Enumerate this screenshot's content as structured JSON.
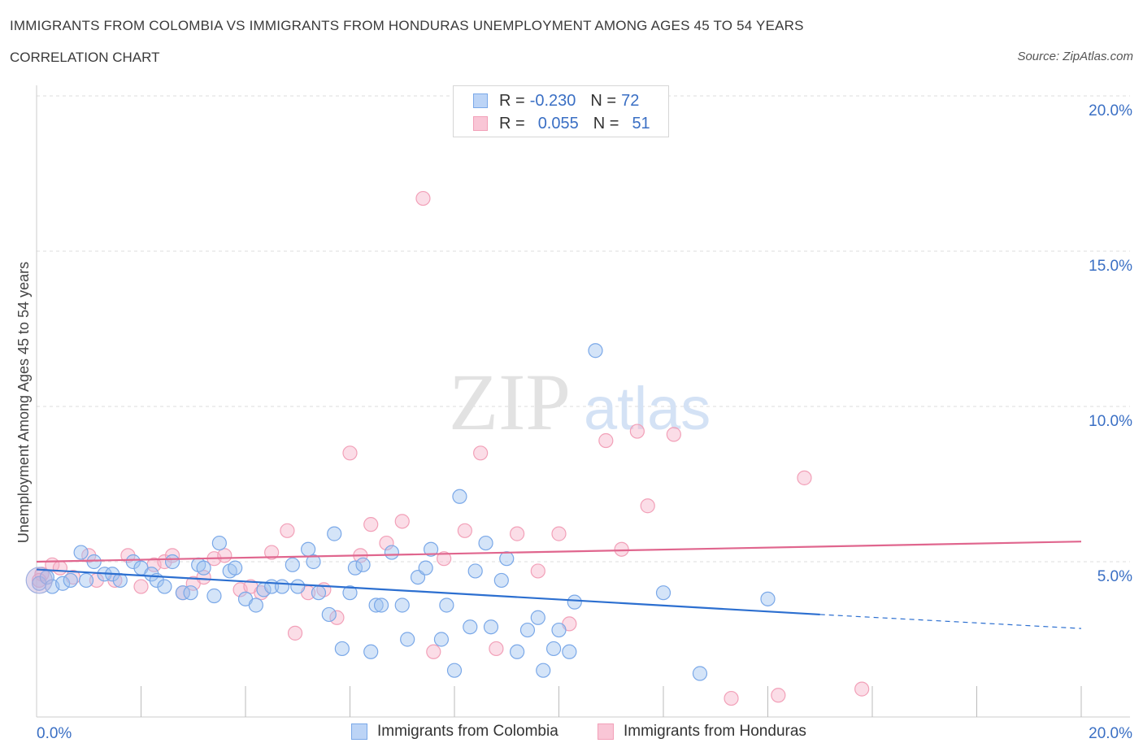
{
  "title": "IMMIGRANTS FROM COLOMBIA VS IMMIGRANTS FROM HONDURAS UNEMPLOYMENT AMONG AGES 45 TO 54 YEARS",
  "subtitle": "CORRELATION CHART",
  "source": "Source: ZipAtlas.com",
  "watermark": {
    "zip": "ZIP",
    "atlas": "atlas"
  },
  "legend_stats": [
    {
      "r_label": "R =",
      "r_value": "-0.230",
      "n_label": "N =",
      "n_value": "72"
    },
    {
      "r_label": "R =",
      "r_value": "0.055",
      "n_label": "N =",
      "n_value": "51"
    }
  ],
  "chart_data": {
    "type": "scatter",
    "title": "IMMIGRANTS FROM COLOMBIA VS IMMIGRANTS FROM HONDURAS UNEMPLOYMENT AMONG AGES 45 TO 54 YEARS",
    "subtitle": "CORRELATION CHART",
    "xlabel": "",
    "ylabel": "Unemployment Among Ages 45 to 54 years",
    "xlim": [
      0,
      20
    ],
    "ylim": [
      0,
      20
    ],
    "x_tick_labels": [
      "0.0%",
      "20.0%"
    ],
    "y_tick_labels": [
      "5.0%",
      "10.0%",
      "15.0%",
      "20.0%"
    ],
    "y_ticks": [
      5,
      10,
      15,
      20
    ],
    "grid": true,
    "legend_position": "top-center",
    "series": [
      {
        "name": "Immigrants from Colombia",
        "color": "#7aa8e8",
        "line_color": "#2c6fd0",
        "r": -0.23,
        "n": 72,
        "trend": {
          "x0": 0,
          "y0": 4.75,
          "x1": 15,
          "y1": 3.3,
          "dash_to_x": 20,
          "dash_to_y": 2.85
        },
        "points": [
          [
            0.05,
            4.3
          ],
          [
            0.2,
            4.5
          ],
          [
            0.3,
            4.2
          ],
          [
            0.5,
            4.3
          ],
          [
            0.65,
            4.4
          ],
          [
            0.85,
            5.3
          ],
          [
            0.95,
            4.4
          ],
          [
            1.1,
            5.0
          ],
          [
            1.3,
            4.6
          ],
          [
            1.45,
            4.6
          ],
          [
            1.6,
            4.4
          ],
          [
            1.85,
            5.0
          ],
          [
            2.0,
            4.8
          ],
          [
            2.2,
            4.6
          ],
          [
            2.3,
            4.4
          ],
          [
            2.45,
            4.2
          ],
          [
            2.6,
            5.0
          ],
          [
            2.8,
            4.0
          ],
          [
            2.95,
            4.0
          ],
          [
            3.1,
            4.9
          ],
          [
            3.2,
            4.8
          ],
          [
            3.4,
            3.9
          ],
          [
            3.5,
            5.6
          ],
          [
            3.7,
            4.7
          ],
          [
            3.8,
            4.8
          ],
          [
            4.0,
            3.8
          ],
          [
            4.2,
            3.6
          ],
          [
            4.35,
            4.1
          ],
          [
            4.5,
            4.2
          ],
          [
            4.7,
            4.2
          ],
          [
            4.9,
            4.9
          ],
          [
            5.0,
            4.2
          ],
          [
            5.2,
            5.4
          ],
          [
            5.3,
            5.0
          ],
          [
            5.4,
            4.0
          ],
          [
            5.6,
            3.3
          ],
          [
            5.7,
            5.9
          ],
          [
            5.85,
            2.2
          ],
          [
            6.0,
            4.0
          ],
          [
            6.1,
            4.8
          ],
          [
            6.25,
            4.9
          ],
          [
            6.4,
            2.1
          ],
          [
            6.5,
            3.6
          ],
          [
            6.6,
            3.6
          ],
          [
            6.8,
            5.3
          ],
          [
            7.0,
            3.6
          ],
          [
            7.1,
            2.5
          ],
          [
            7.3,
            4.5
          ],
          [
            7.45,
            4.8
          ],
          [
            7.55,
            5.4
          ],
          [
            7.75,
            2.5
          ],
          [
            7.85,
            3.6
          ],
          [
            8.0,
            1.5
          ],
          [
            8.1,
            7.1
          ],
          [
            8.3,
            2.9
          ],
          [
            8.4,
            4.7
          ],
          [
            8.6,
            5.6
          ],
          [
            8.7,
            2.9
          ],
          [
            8.9,
            4.4
          ],
          [
            9.0,
            5.1
          ],
          [
            9.2,
            2.1
          ],
          [
            9.4,
            2.8
          ],
          [
            9.6,
            3.2
          ],
          [
            9.7,
            1.5
          ],
          [
            9.9,
            2.2
          ],
          [
            10.0,
            2.8
          ],
          [
            10.2,
            2.1
          ],
          [
            10.3,
            3.7
          ],
          [
            10.7,
            11.8
          ],
          [
            12.0,
            4.0
          ],
          [
            12.7,
            1.4
          ],
          [
            14.0,
            3.8
          ]
        ]
      },
      {
        "name": "Immigrants from Honduras",
        "color": "#f2a0b8",
        "line_color": "#e0668e",
        "r": 0.055,
        "n": 51,
        "trend": {
          "x0": 0,
          "y0": 5.0,
          "x1": 20,
          "y1": 5.65
        },
        "points": [
          [
            0.1,
            4.6
          ],
          [
            0.3,
            4.9
          ],
          [
            0.45,
            4.8
          ],
          [
            0.7,
            4.5
          ],
          [
            1.0,
            5.2
          ],
          [
            1.15,
            4.4
          ],
          [
            1.5,
            4.4
          ],
          [
            1.75,
            5.2
          ],
          [
            2.0,
            4.2
          ],
          [
            2.25,
            4.9
          ],
          [
            2.45,
            5.0
          ],
          [
            2.6,
            5.2
          ],
          [
            2.8,
            4.0
          ],
          [
            3.0,
            4.3
          ],
          [
            3.2,
            4.5
          ],
          [
            3.4,
            5.1
          ],
          [
            3.6,
            5.2
          ],
          [
            3.9,
            4.1
          ],
          [
            4.1,
            4.2
          ],
          [
            4.3,
            4.0
          ],
          [
            4.5,
            5.3
          ],
          [
            4.8,
            6.0
          ],
          [
            4.95,
            2.7
          ],
          [
            5.2,
            4.0
          ],
          [
            5.5,
            4.1
          ],
          [
            5.75,
            3.2
          ],
          [
            6.0,
            8.5
          ],
          [
            6.2,
            5.2
          ],
          [
            6.4,
            6.2
          ],
          [
            6.7,
            5.6
          ],
          [
            7.0,
            6.3
          ],
          [
            7.4,
            16.7
          ],
          [
            7.6,
            2.1
          ],
          [
            7.8,
            5.1
          ],
          [
            8.2,
            6.0
          ],
          [
            8.5,
            8.5
          ],
          [
            8.8,
            2.2
          ],
          [
            9.2,
            5.9
          ],
          [
            9.6,
            4.7
          ],
          [
            10.0,
            5.9
          ],
          [
            10.2,
            3.0
          ],
          [
            10.9,
            8.9
          ],
          [
            11.2,
            5.4
          ],
          [
            11.5,
            9.2
          ],
          [
            11.7,
            6.8
          ],
          [
            12.2,
            9.1
          ],
          [
            13.3,
            0.6
          ],
          [
            14.2,
            0.7
          ],
          [
            14.7,
            7.7
          ],
          [
            15.8,
            0.9
          ],
          [
            0.05,
            4.4
          ]
        ]
      }
    ]
  }
}
